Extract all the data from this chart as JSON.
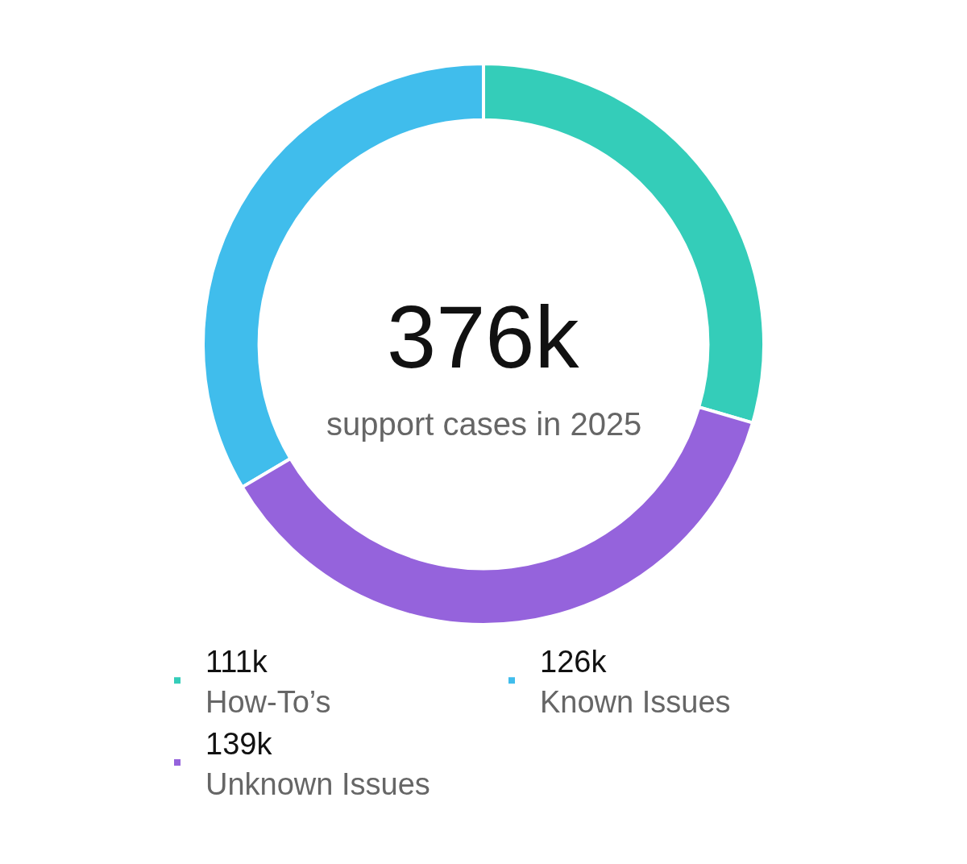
{
  "chart_data": {
    "type": "donut",
    "categories": [
      "How-To’s",
      "Known Issues",
      "Unknown Issues"
    ],
    "values": [
      111,
      126,
      139
    ],
    "value_labels": [
      "111k",
      "126k",
      "139k"
    ],
    "colors": [
      "#34cdb9",
      "#40bdec",
      "#9563dc"
    ],
    "annotations": [
      "376k",
      "support cases in 2025"
    ],
    "legend": "bottom"
  }
}
